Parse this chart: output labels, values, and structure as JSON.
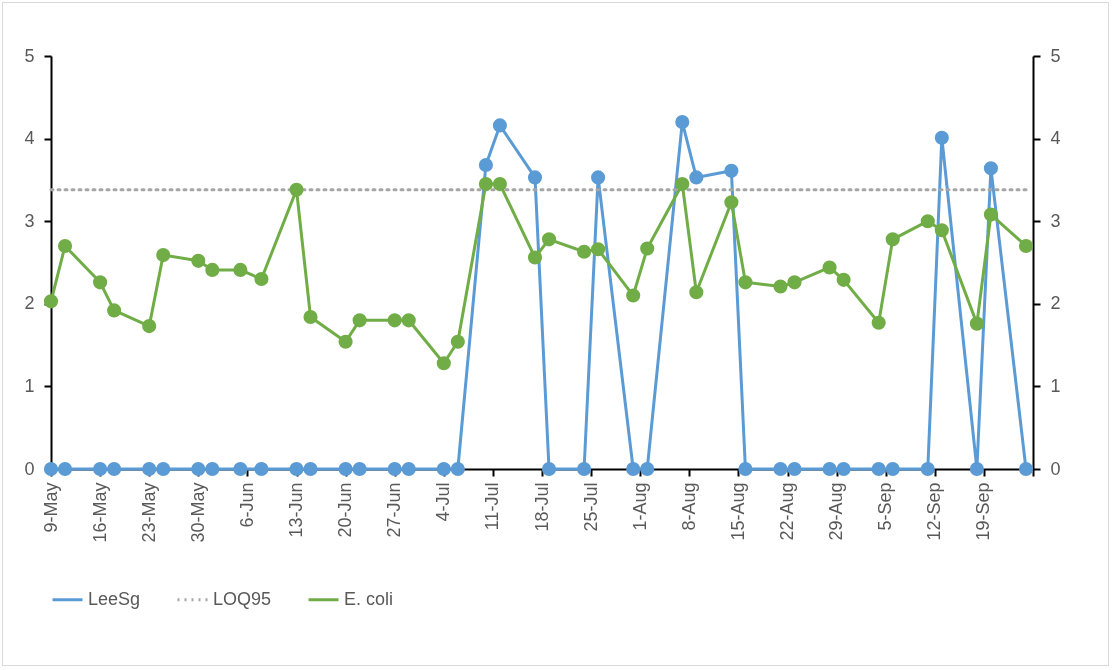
{
  "chart_data": {
    "type": "line",
    "x": [
      "--05-09",
      "--05-11",
      "--05-16",
      "--05-18",
      "--05-23",
      "--05-25",
      "--05-30",
      "--06-01",
      "--06-05",
      "--06-08",
      "--06-13",
      "--06-15",
      "--06-20",
      "--06-22",
      "--06-27",
      "--06-29",
      "--07-04",
      "--07-06",
      "--07-10",
      "--07-12",
      "--07-17",
      "--07-19",
      "--07-24",
      "--07-26",
      "--07-31",
      "--08-02",
      "--08-07",
      "--08-09",
      "--08-14",
      "--08-16",
      "--08-21",
      "--08-23",
      "--08-28",
      "--08-30",
      "--09-04",
      "--09-06",
      "--09-11",
      "--09-13",
      "--09-18",
      "--09-20",
      "--09-25"
    ],
    "series": [
      {
        "name": "LeeSg",
        "color": "#5b9bd5",
        "values": [
          0,
          0,
          0,
          0,
          0,
          0,
          0,
          0,
          0,
          0,
          0,
          0,
          0,
          0,
          0,
          0,
          0,
          0,
          3.68,
          4.16,
          3.53,
          0,
          0,
          3.53,
          0,
          0,
          4.2,
          3.53,
          3.61,
          0,
          0,
          0,
          0,
          0,
          0,
          0,
          0,
          4.01,
          0,
          3.64,
          0
        ]
      },
      {
        "name": "LOQ95",
        "color": "#a5a5a5",
        "line_style": "dotted",
        "marker": "none",
        "x": [
          "--05-09",
          "--09-25"
        ],
        "values": [
          3.38,
          3.38
        ]
      },
      {
        "name": "E. coli",
        "color": "#70ad47",
        "values": [
          2.03,
          2.7,
          2.26,
          1.92,
          1.73,
          2.59,
          2.52,
          2.41,
          2.41,
          2.3,
          3.38,
          1.84,
          1.54,
          1.8,
          1.8,
          1.8,
          1.28,
          1.54,
          3.45,
          3.45,
          2.56,
          2.78,
          2.63,
          2.66,
          2.1,
          2.67,
          3.45,
          2.14,
          3.23,
          2.26,
          2.21,
          2.26,
          2.44,
          2.29,
          1.77,
          2.78,
          3.0,
          2.89,
          1.76,
          3.08,
          2.7
        ]
      }
    ],
    "xlim": [
      "--05-09",
      "--09-26"
    ],
    "xticks": [
      {
        "value": "--05-09",
        "label": "9-May"
      },
      {
        "value": "--05-16",
        "label": "16-May"
      },
      {
        "value": "--05-23",
        "label": "23-May"
      },
      {
        "value": "--05-30",
        "label": "30-May"
      },
      {
        "value": "--06-06",
        "label": "6-Jun"
      },
      {
        "value": "--06-13",
        "label": "13-Jun"
      },
      {
        "value": "--06-20",
        "label": "20-Jun"
      },
      {
        "value": "--06-27",
        "label": "27-Jun"
      },
      {
        "value": "--07-04",
        "label": "4-Jul"
      },
      {
        "value": "--07-11",
        "label": "11-Jul"
      },
      {
        "value": "--07-18",
        "label": "18-Jul"
      },
      {
        "value": "--07-25",
        "label": "25-Jul"
      },
      {
        "value": "--08-01",
        "label": "1-Aug"
      },
      {
        "value": "--08-08",
        "label": "8-Aug"
      },
      {
        "value": "--08-15",
        "label": "15-Aug"
      },
      {
        "value": "--08-22",
        "label": "22-Aug"
      },
      {
        "value": "--08-29",
        "label": "29-Aug"
      },
      {
        "value": "--09-05",
        "label": "5-Sep"
      },
      {
        "value": "--09-12",
        "label": "12-Sep"
      },
      {
        "value": "--09-19",
        "label": "19-Sep"
      },
      {
        "value": "--09-26",
        "label": null
      }
    ],
    "ylim": [
      0,
      5
    ],
    "yticks": [
      0,
      1,
      2,
      3,
      4,
      5
    ],
    "y2lim": [
      0,
      5
    ],
    "y2ticks": [
      0,
      1,
      2,
      3,
      4,
      5
    ],
    "grid": false,
    "legend": "bottom",
    "marker": "circle",
    "line_style": "solid"
  }
}
